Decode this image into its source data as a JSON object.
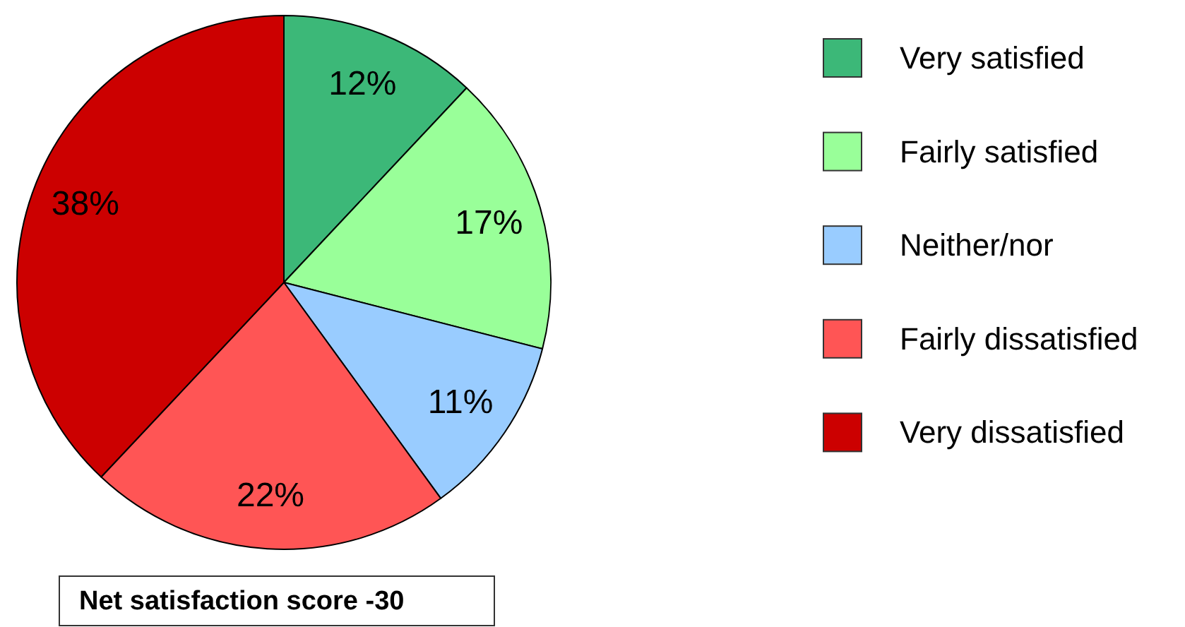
{
  "chart_data": {
    "type": "pie",
    "categories": [
      "Very satisfied",
      "Fairly satisfied",
      "Neither/nor",
      "Fairly dissatisfied",
      "Very dissatisfied"
    ],
    "values": [
      12,
      17,
      11,
      22,
      38
    ],
    "colors": [
      "#3cb878",
      "#99ff99",
      "#99ccff",
      "#ff5555",
      "#cc0000"
    ],
    "value_labels": [
      "12%",
      "17%",
      "11%",
      "22%",
      "38%"
    ],
    "legend": "right",
    "annotations": [
      "Net satisfaction score -30"
    ]
  }
}
